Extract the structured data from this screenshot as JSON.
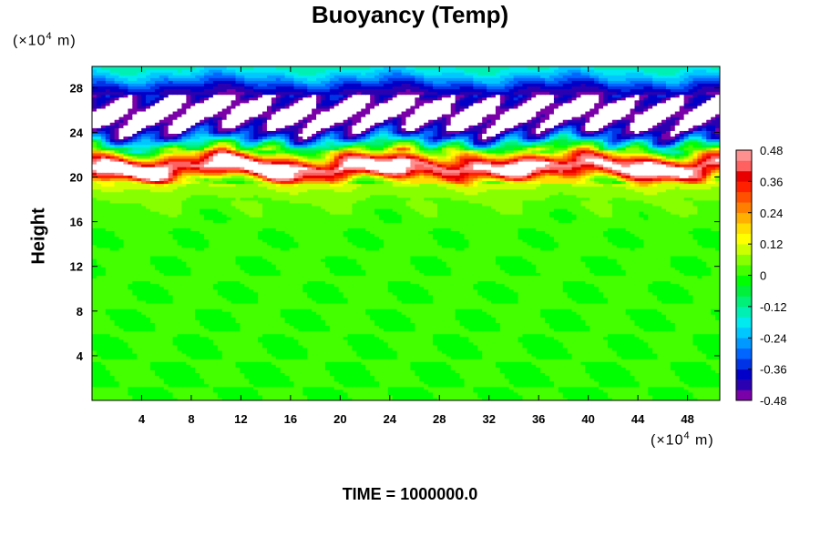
{
  "title": "Buoyancy (Temp)",
  "time_label": "TIME = 1000000.0",
  "x_unit": {
    "prefix": "(×10",
    "exp": "4",
    "suffix": " m)"
  },
  "y_unit": {
    "prefix": "(×10",
    "exp": "4",
    "suffix": " m)"
  },
  "colors": {
    "palette": [
      "#7a00a8",
      "#2a00b0",
      "#0000c8",
      "#0033e6",
      "#0066ff",
      "#0099ff",
      "#00c8ff",
      "#00eaf0",
      "#00f0b4",
      "#00f078",
      "#00f03c",
      "#00ff00",
      "#44ff00",
      "#88ff00",
      "#ccff00",
      "#ffff00",
      "#ffdd00",
      "#ffb000",
      "#ff8000",
      "#ff5000",
      "#ff2000",
      "#e80000",
      "#ff6060",
      "#ff9090"
    ],
    "white": "#ffffff"
  },
  "chart_data": {
    "type": "heatmap",
    "title": "Buoyancy (Temp)",
    "xlabel": "",
    "ylabel": "Height",
    "xlim": [
      0,
      50.6
    ],
    "ylim": [
      0,
      29.9
    ],
    "xticks": [
      4,
      8,
      12,
      16,
      20,
      24,
      28,
      32,
      36,
      40,
      44,
      48
    ],
    "xtick_labels": [
      "4",
      "8",
      "12",
      "16",
      "20",
      "24",
      "28",
      "32",
      "36",
      "40",
      "44",
      "48"
    ],
    "yticks": [
      4,
      8,
      12,
      16,
      20,
      24,
      28
    ],
    "ytick_labels": [
      "4",
      "8",
      "12",
      "16",
      "20",
      "24",
      "28"
    ],
    "colorbar": {
      "min": -0.48,
      "max": 0.48,
      "ticks": [
        0.48,
        0.36,
        0.24,
        0.12,
        0,
        -0.12,
        -0.24,
        -0.36,
        -0.48
      ],
      "tick_labels": [
        "0.48",
        "0.36",
        "0.24",
        "0.12",
        "0",
        "-0.12",
        "-0.24",
        "-0.36",
        "-0.48"
      ]
    },
    "value_profile": [
      {
        "height": 0,
        "value": 0.0
      },
      {
        "height": 16,
        "value": 0.01
      },
      {
        "height": 18,
        "value": 0.04
      },
      {
        "height": 19.6,
        "value": 0.1
      },
      {
        "height": 20.3,
        "value": 0.4
      },
      {
        "height": 21.0,
        "value": 0.55
      },
      {
        "height": 21.6,
        "value": 0.36
      },
      {
        "height": 22.2,
        "value": 0.12
      },
      {
        "height": 22.8,
        "value": -0.05
      },
      {
        "height": 23.5,
        "value": -0.3
      },
      {
        "height": 24.2,
        "value": -0.42
      },
      {
        "height": 25.0,
        "value": -0.5
      },
      {
        "height": 26.0,
        "value": -0.55
      },
      {
        "height": 27.0,
        "value": -0.46
      },
      {
        "height": 28.0,
        "value": -0.38
      },
      {
        "height": 29.0,
        "value": -0.24
      },
      {
        "height": 29.9,
        "value": -0.14
      }
    ]
  }
}
